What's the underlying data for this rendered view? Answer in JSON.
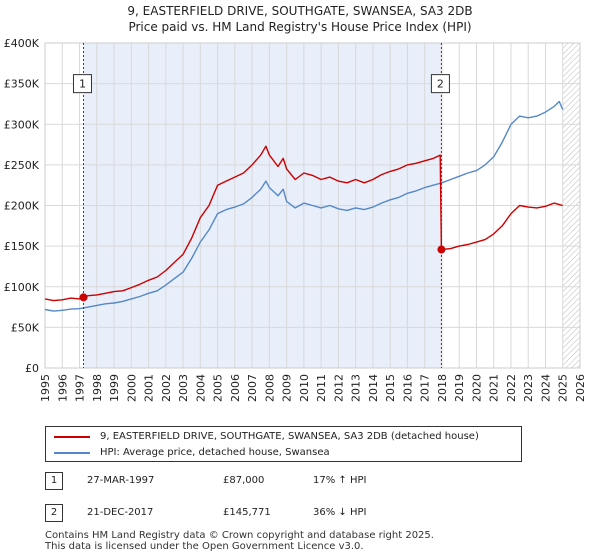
{
  "chart_data": {
    "type": "line",
    "title": "9, EASTERFIELD DRIVE, SOUTHGATE, SWANSEA, SA3 2DB",
    "subtitle": "Price paid vs. HM Land Registry's House Price Index (HPI)",
    "xlim": [
      1995,
      2026
    ],
    "ylim": [
      0,
      400000
    ],
    "x_ticks": [
      "1995",
      "1996",
      "1997",
      "1998",
      "1999",
      "2000",
      "2001",
      "2002",
      "2003",
      "2004",
      "2005",
      "2006",
      "2007",
      "2008",
      "2009",
      "2010",
      "2011",
      "2012",
      "2013",
      "2014",
      "2015",
      "2016",
      "2017",
      "2018",
      "2019",
      "2020",
      "2021",
      "2022",
      "2023",
      "2024",
      "2025",
      "2026"
    ],
    "y_ticks": [
      {
        "value": 0,
        "label": "£0"
      },
      {
        "value": 50000,
        "label": "£50K"
      },
      {
        "value": 100000,
        "label": "£100K"
      },
      {
        "value": 150000,
        "label": "£150K"
      },
      {
        "value": 200000,
        "label": "£200K"
      },
      {
        "value": 250000,
        "label": "£250K"
      },
      {
        "value": 300000,
        "label": "£300K"
      },
      {
        "value": 350000,
        "label": "£350K"
      },
      {
        "value": 400000,
        "label": "£400K"
      }
    ],
    "sale_period": [
      1997.23,
      2017.97
    ],
    "forecast_start": 2025.0,
    "series": [
      {
        "name": "9, EASTERFIELD DRIVE, SOUTHGATE, SWANSEA, SA3 2DB (detached house)",
        "color": "#cc0000",
        "points": [
          [
            1995.0,
            85000
          ],
          [
            1995.5,
            83000
          ],
          [
            1996.0,
            84000
          ],
          [
            1996.5,
            86000
          ],
          [
            1997.0,
            85000
          ],
          [
            1997.23,
            87000
          ],
          [
            1997.5,
            89000
          ],
          [
            1998.0,
            90000
          ],
          [
            1998.5,
            92000
          ],
          [
            1999.0,
            94000
          ],
          [
            1999.5,
            95000
          ],
          [
            2000.0,
            99000
          ],
          [
            2000.5,
            103000
          ],
          [
            2001.0,
            108000
          ],
          [
            2001.5,
            112000
          ],
          [
            2002.0,
            120000
          ],
          [
            2002.5,
            130000
          ],
          [
            2003.0,
            140000
          ],
          [
            2003.5,
            160000
          ],
          [
            2004.0,
            185000
          ],
          [
            2004.5,
            200000
          ],
          [
            2005.0,
            225000
          ],
          [
            2005.5,
            230000
          ],
          [
            2006.0,
            235000
          ],
          [
            2006.5,
            240000
          ],
          [
            2007.0,
            250000
          ],
          [
            2007.5,
            262000
          ],
          [
            2007.8,
            273000
          ],
          [
            2008.0,
            262000
          ],
          [
            2008.5,
            248000
          ],
          [
            2008.8,
            258000
          ],
          [
            2009.0,
            245000
          ],
          [
            2009.5,
            232000
          ],
          [
            2010.0,
            240000
          ],
          [
            2010.5,
            237000
          ],
          [
            2011.0,
            232000
          ],
          [
            2011.5,
            235000
          ],
          [
            2012.0,
            230000
          ],
          [
            2012.5,
            228000
          ],
          [
            2013.0,
            232000
          ],
          [
            2013.5,
            228000
          ],
          [
            2014.0,
            232000
          ],
          [
            2014.5,
            238000
          ],
          [
            2015.0,
            242000
          ],
          [
            2015.5,
            245000
          ],
          [
            2016.0,
            250000
          ],
          [
            2016.5,
            252000
          ],
          [
            2017.0,
            255000
          ],
          [
            2017.5,
            258000
          ],
          [
            2017.9,
            262000
          ],
          [
            2017.97,
            145771
          ],
          [
            2018.5,
            147000
          ],
          [
            2019.0,
            150000
          ],
          [
            2019.5,
            152000
          ],
          [
            2020.0,
            155000
          ],
          [
            2020.5,
            158000
          ],
          [
            2021.0,
            165000
          ],
          [
            2021.5,
            175000
          ],
          [
            2022.0,
            190000
          ],
          [
            2022.5,
            200000
          ],
          [
            2023.0,
            198000
          ],
          [
            2023.5,
            197000
          ],
          [
            2024.0,
            199000
          ],
          [
            2024.5,
            203000
          ],
          [
            2025.0,
            200000
          ]
        ]
      },
      {
        "name": "HPI: Average price, detached house, Swansea",
        "color": "#5588c8",
        "points": [
          [
            1995.0,
            72000
          ],
          [
            1995.5,
            70000
          ],
          [
            1996.0,
            71000
          ],
          [
            1996.5,
            72500
          ],
          [
            1997.0,
            73000
          ],
          [
            1997.5,
            75000
          ],
          [
            1998.0,
            77000
          ],
          [
            1998.5,
            79000
          ],
          [
            1999.0,
            80000
          ],
          [
            1999.5,
            82000
          ],
          [
            2000.0,
            85000
          ],
          [
            2000.5,
            88000
          ],
          [
            2001.0,
            92000
          ],
          [
            2001.5,
            95000
          ],
          [
            2002.0,
            102000
          ],
          [
            2002.5,
            110000
          ],
          [
            2003.0,
            118000
          ],
          [
            2003.5,
            135000
          ],
          [
            2004.0,
            155000
          ],
          [
            2004.5,
            170000
          ],
          [
            2005.0,
            190000
          ],
          [
            2005.5,
            195000
          ],
          [
            2006.0,
            198000
          ],
          [
            2006.5,
            202000
          ],
          [
            2007.0,
            210000
          ],
          [
            2007.5,
            220000
          ],
          [
            2007.8,
            230000
          ],
          [
            2008.0,
            222000
          ],
          [
            2008.5,
            212000
          ],
          [
            2008.8,
            220000
          ],
          [
            2009.0,
            205000
          ],
          [
            2009.5,
            197000
          ],
          [
            2010.0,
            203000
          ],
          [
            2010.5,
            200000
          ],
          [
            2011.0,
            197000
          ],
          [
            2011.5,
            200000
          ],
          [
            2012.0,
            196000
          ],
          [
            2012.5,
            194000
          ],
          [
            2013.0,
            197000
          ],
          [
            2013.5,
            195000
          ],
          [
            2014.0,
            198000
          ],
          [
            2014.5,
            203000
          ],
          [
            2015.0,
            207000
          ],
          [
            2015.5,
            210000
          ],
          [
            2016.0,
            215000
          ],
          [
            2016.5,
            218000
          ],
          [
            2017.0,
            222000
          ],
          [
            2017.5,
            225000
          ],
          [
            2018.0,
            228000
          ],
          [
            2018.5,
            232000
          ],
          [
            2019.0,
            236000
          ],
          [
            2019.5,
            240000
          ],
          [
            2020.0,
            243000
          ],
          [
            2020.5,
            250000
          ],
          [
            2021.0,
            260000
          ],
          [
            2021.5,
            278000
          ],
          [
            2022.0,
            300000
          ],
          [
            2022.5,
            310000
          ],
          [
            2023.0,
            308000
          ],
          [
            2023.5,
            310000
          ],
          [
            2024.0,
            315000
          ],
          [
            2024.5,
            322000
          ],
          [
            2024.8,
            328000
          ],
          [
            2025.0,
            318000
          ]
        ]
      }
    ],
    "markers": [
      {
        "label": "1",
        "x": 1997.23,
        "y": 87000,
        "label_value": 350000
      },
      {
        "label": "2",
        "x": 2017.97,
        "y": 145771,
        "label_value": 350000
      }
    ]
  },
  "legend": {
    "property": "9, EASTERFIELD DRIVE, SOUTHGATE, SWANSEA, SA3 2DB (detached house)",
    "hpi": "HPI: Average price, detached house, Swansea"
  },
  "sales": [
    {
      "label": "1",
      "date": "27-MAR-1997",
      "price": "£87,000",
      "hpi": "17% ↑ HPI"
    },
    {
      "label": "2",
      "date": "21-DEC-2017",
      "price": "£145,771",
      "hpi": "36% ↓ HPI"
    }
  ],
  "footer": {
    "line1": "Contains HM Land Registry data © Crown copyright and database right 2025.",
    "line2": "This data is licensed under the Open Government Licence v3.0."
  },
  "colors": {
    "property": "#cc0000",
    "hpi": "#5588c8",
    "shade": "#e8eefa",
    "grid": "#d9d9d9"
  }
}
